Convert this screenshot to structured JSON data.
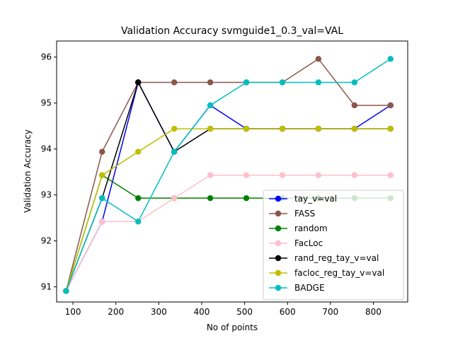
{
  "chart_data": {
    "type": "line",
    "title": "Validation Accuracy svmguide1_0.3_val=VAL",
    "xlabel": "No of points",
    "ylabel": "Validation Accuracy",
    "xlim": [
      62,
      880
    ],
    "ylim": [
      90.67,
      96.35
    ],
    "xticks": [
      100,
      200,
      300,
      400,
      500,
      600,
      700,
      800
    ],
    "yticks": [
      91,
      92,
      93,
      94,
      95,
      96
    ],
    "grid": false,
    "legend_position": "lower-right",
    "x": [
      84,
      168,
      252,
      336,
      420,
      504,
      588,
      672,
      756,
      840
    ],
    "series": [
      {
        "name": "tay_v=val",
        "color": "#0000ff",
        "values": [
          90.91,
          92.42,
          95.45,
          93.94,
          94.95,
          94.44,
          94.44,
          94.44,
          94.44,
          94.95
        ]
      },
      {
        "name": "FASS",
        "color": "#8c564b",
        "values": [
          90.91,
          93.94,
          95.45,
          95.45,
          95.45,
          95.45,
          95.45,
          95.96,
          94.95,
          94.95
        ]
      },
      {
        "name": "random",
        "color": "#008000",
        "values": [
          90.91,
          93.43,
          92.93,
          92.93,
          92.93,
          92.93,
          92.93,
          92.93,
          92.93,
          92.93
        ]
      },
      {
        "name": "FacLoc",
        "color": "#ffc0cb",
        "values": [
          90.91,
          92.42,
          92.42,
          92.93,
          93.43,
          93.43,
          93.43,
          93.43,
          93.43,
          93.43
        ]
      },
      {
        "name": "rand_reg_tay_v=val",
        "color": "#000000",
        "values": [
          90.91,
          92.93,
          95.45,
          93.94,
          94.44,
          94.44,
          94.44,
          94.44,
          94.44,
          94.44
        ]
      },
      {
        "name": "facloc_reg_tay_v=val",
        "color": "#bfbf00",
        "values": [
          90.91,
          93.43,
          93.94,
          94.44,
          94.44,
          94.44,
          94.44,
          94.44,
          94.44,
          94.44
        ]
      },
      {
        "name": "BADGE",
        "color": "#00bfbf",
        "values": [
          90.91,
          92.93,
          92.42,
          93.94,
          94.95,
          95.45,
          95.45,
          95.45,
          95.45,
          95.96
        ]
      }
    ]
  }
}
